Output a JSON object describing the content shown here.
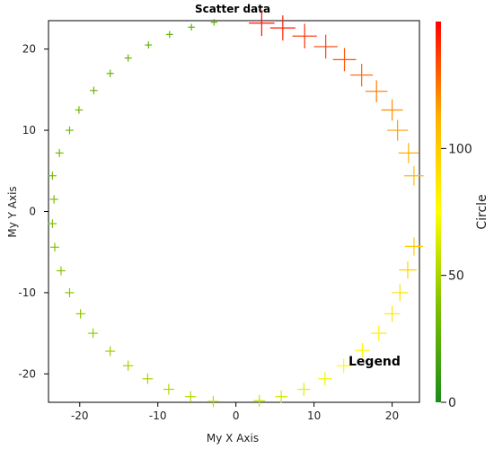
{
  "chart_data": {
    "type": "scatter",
    "title": "Scatter data",
    "xlabel": "My X Axis",
    "ylabel": "My Y Axis",
    "xlim": [
      -24,
      23.5
    ],
    "ylim": [
      -23.5,
      23.5
    ],
    "x_ticks": [
      -20,
      -10,
      0,
      10,
      20
    ],
    "y_ticks": [
      -20,
      -10,
      0,
      10,
      20
    ],
    "grid": false,
    "marker": "plus",
    "legend": {
      "label": "Legend",
      "placement": "bottom-right"
    },
    "colorbar": {
      "label": "Circle",
      "range": [
        0,
        150
      ],
      "ticks": [
        0,
        50,
        100
      ],
      "colors": [
        "#1a8c1a",
        "#7cc000",
        "#ffff00",
        "#ffb000",
        "#ff0000"
      ]
    },
    "series": [
      {
        "points": [
          {
            "x": -23.3,
            "y": 1.5,
            "c": 36
          },
          {
            "x": -23.5,
            "y": 4.4,
            "c": 35
          },
          {
            "x": -22.6,
            "y": 7.2,
            "c": 34
          },
          {
            "x": -21.3,
            "y": 10.0,
            "c": 33
          },
          {
            "x": -20.1,
            "y": 12.5,
            "c": 32
          },
          {
            "x": -18.2,
            "y": 14.9,
            "c": 31
          },
          {
            "x": -16.1,
            "y": 17.0,
            "c": 30
          },
          {
            "x": -13.8,
            "y": 18.9,
            "c": 29
          },
          {
            "x": -11.2,
            "y": 20.5,
            "c": 28
          },
          {
            "x": -8.5,
            "y": 21.8,
            "c": 27
          },
          {
            "x": -5.7,
            "y": 22.7,
            "c": 26
          },
          {
            "x": -2.8,
            "y": 23.3,
            "c": 25
          },
          {
            "x": 3.3,
            "y": 23.2,
            "c": 147
          },
          {
            "x": 6.0,
            "y": 22.6,
            "c": 144
          },
          {
            "x": 8.8,
            "y": 21.6,
            "c": 140
          },
          {
            "x": 11.5,
            "y": 20.3,
            "c": 136
          },
          {
            "x": 13.9,
            "y": 18.7,
            "c": 132
          },
          {
            "x": 16.1,
            "y": 16.8,
            "c": 128
          },
          {
            "x": 18.0,
            "y": 14.8,
            "c": 124
          },
          {
            "x": 20.0,
            "y": 12.5,
            "c": 120
          },
          {
            "x": 20.7,
            "y": 10.0,
            "c": 116
          },
          {
            "x": 22.1,
            "y": 7.2,
            "c": 112
          },
          {
            "x": 22.8,
            "y": 4.4,
            "c": 108
          },
          {
            "x": 22.8,
            "y": -4.3,
            "c": 100
          },
          {
            "x": 22.0,
            "y": -7.2,
            "c": 95
          },
          {
            "x": 21.0,
            "y": -10.0,
            "c": 90
          },
          {
            "x": 20.0,
            "y": -12.6,
            "c": 86
          },
          {
            "x": 18.3,
            "y": -15.0,
            "c": 82
          },
          {
            "x": 16.2,
            "y": -17.1,
            "c": 78
          },
          {
            "x": 13.8,
            "y": -19.0,
            "c": 74
          },
          {
            "x": 11.4,
            "y": -20.6,
            "c": 70
          },
          {
            "x": 8.7,
            "y": -21.9,
            "c": 66
          },
          {
            "x": 5.8,
            "y": -22.8,
            "c": 62
          },
          {
            "x": 3.0,
            "y": -23.3,
            "c": 58
          },
          {
            "x": -2.9,
            "y": -23.4,
            "c": 55
          },
          {
            "x": -5.8,
            "y": -22.8,
            "c": 53
          },
          {
            "x": -8.6,
            "y": -21.9,
            "c": 51
          },
          {
            "x": -11.3,
            "y": -20.6,
            "c": 50
          },
          {
            "x": -13.8,
            "y": -19.0,
            "c": 48
          },
          {
            "x": -16.1,
            "y": -17.2,
            "c": 46
          },
          {
            "x": -18.3,
            "y": -15.0,
            "c": 44
          },
          {
            "x": -19.9,
            "y": -12.6,
            "c": 42
          },
          {
            "x": -21.3,
            "y": -10.0,
            "c": 41
          },
          {
            "x": -22.4,
            "y": -7.3,
            "c": 40
          },
          {
            "x": -23.2,
            "y": -4.4,
            "c": 39
          },
          {
            "x": -23.5,
            "y": -1.5,
            "c": 38
          }
        ]
      }
    ]
  }
}
